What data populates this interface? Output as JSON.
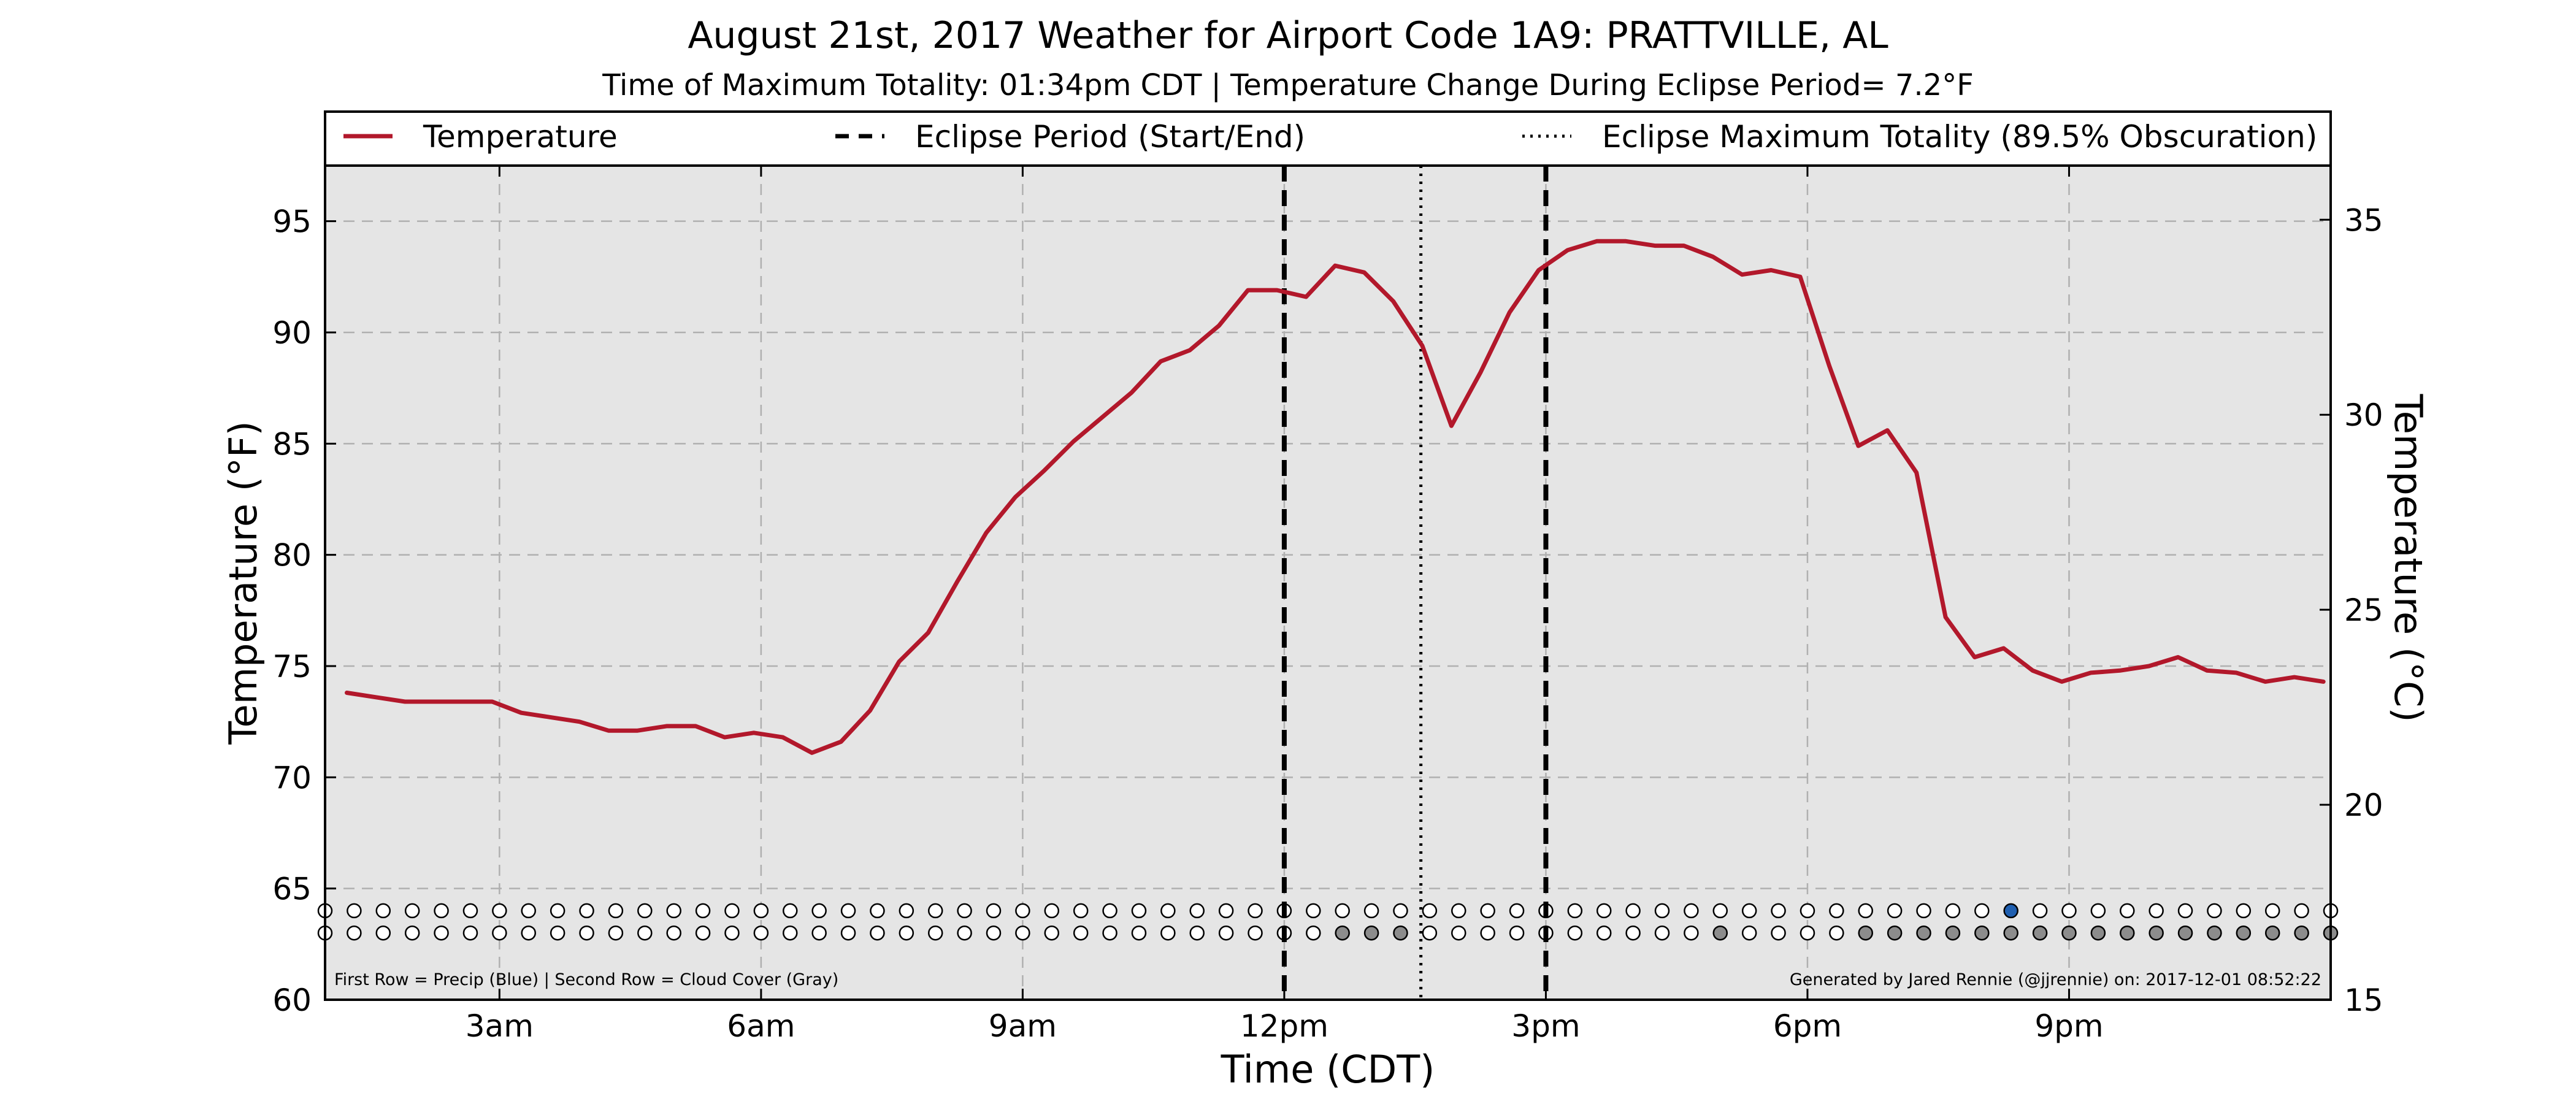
{
  "chart_data": {
    "type": "line",
    "title": "August 21st, 2017 Weather for Airport Code 1A9: PRATTVILLE, AL",
    "subtitle": "Time of Maximum Totality: 01:34pm CDT | Temperature Change During Eclipse Period= 7.2°F",
    "xlabel": "Time (CDT)",
    "ylabel": "Temperature (°F)",
    "ylabel_right": "Temperature (°C)",
    "xlim": [
      "01:00",
      "24:00"
    ],
    "ylim": [
      60,
      97.5
    ],
    "ylim_right_c": [
      15,
      36.3889
    ],
    "x_ticks": [
      {
        "time": "03:00",
        "label": "3am"
      },
      {
        "time": "06:00",
        "label": "6am"
      },
      {
        "time": "09:00",
        "label": "9am"
      },
      {
        "time": "12:00",
        "label": "12pm"
      },
      {
        "time": "15:00",
        "label": "3pm"
      },
      {
        "time": "18:00",
        "label": "6pm"
      },
      {
        "time": "21:00",
        "label": "9pm"
      }
    ],
    "y_ticks": [
      60,
      65,
      70,
      75,
      80,
      85,
      90,
      95
    ],
    "y_ticks_right": [
      15,
      20,
      25,
      30,
      35
    ],
    "grid": true,
    "legend_position": "top",
    "legend": [
      {
        "label": "Temperature",
        "style": "solid"
      },
      {
        "label": "Eclipse Period (Start/End)",
        "style": "dashed"
      },
      {
        "label": "Eclipse Maximum Totality (89.5% Obscuration)",
        "style": "dotted"
      }
    ],
    "eclipse_start": "12:00",
    "eclipse_end": "15:00",
    "eclipse_max": "13:34",
    "series": [
      {
        "name": "Temperature",
        "color": "#b2182b",
        "points": [
          [
            "01:15",
            73.8
          ],
          [
            "01:35",
            73.6
          ],
          [
            "01:55",
            73.4
          ],
          [
            "02:15",
            73.4
          ],
          [
            "02:35",
            73.4
          ],
          [
            "02:55",
            73.4
          ],
          [
            "03:15",
            72.9
          ],
          [
            "03:35",
            72.7
          ],
          [
            "03:55",
            72.5
          ],
          [
            "04:15",
            72.1
          ],
          [
            "04:35",
            72.1
          ],
          [
            "04:55",
            72.3
          ],
          [
            "05:15",
            72.3
          ],
          [
            "05:35",
            71.8
          ],
          [
            "05:55",
            72.0
          ],
          [
            "06:15",
            71.8
          ],
          [
            "06:35",
            71.1
          ],
          [
            "06:55",
            71.6
          ],
          [
            "07:15",
            73.0
          ],
          [
            "07:35",
            75.2
          ],
          [
            "07:55",
            76.5
          ],
          [
            "08:15",
            78.8
          ],
          [
            "08:35",
            81.0
          ],
          [
            "08:55",
            82.6
          ],
          [
            "09:15",
            83.8
          ],
          [
            "09:35",
            85.1
          ],
          [
            "09:55",
            86.2
          ],
          [
            "10:15",
            87.3
          ],
          [
            "10:35",
            88.7
          ],
          [
            "10:55",
            89.2
          ],
          [
            "11:15",
            90.3
          ],
          [
            "11:35",
            91.9
          ],
          [
            "11:55",
            91.9
          ],
          [
            "12:15",
            91.6
          ],
          [
            "12:35",
            93.0
          ],
          [
            "12:55",
            92.7
          ],
          [
            "13:15",
            91.4
          ],
          [
            "13:35",
            89.4
          ],
          [
            "13:55",
            85.8
          ],
          [
            "14:15",
            88.2
          ],
          [
            "14:35",
            90.9
          ],
          [
            "14:55",
            92.8
          ],
          [
            "15:15",
            93.7
          ],
          [
            "15:35",
            94.1
          ],
          [
            "15:55",
            94.1
          ],
          [
            "16:15",
            93.9
          ],
          [
            "16:35",
            93.9
          ],
          [
            "16:55",
            93.4
          ],
          [
            "17:15",
            92.6
          ],
          [
            "17:35",
            92.8
          ],
          [
            "17:55",
            92.5
          ],
          [
            "18:15",
            88.5
          ],
          [
            "18:35",
            84.9
          ],
          [
            "18:55",
            85.6
          ],
          [
            "19:15",
            83.7
          ],
          [
            "19:35",
            77.2
          ],
          [
            "19:55",
            75.4
          ],
          [
            "20:15",
            75.8
          ],
          [
            "20:35",
            74.8
          ],
          [
            "20:55",
            74.3
          ],
          [
            "21:15",
            74.7
          ],
          [
            "21:35",
            74.8
          ],
          [
            "21:55",
            75.0
          ],
          [
            "22:15",
            75.4
          ],
          [
            "22:35",
            74.8
          ],
          [
            "22:55",
            74.7
          ],
          [
            "23:15",
            74.3
          ],
          [
            "23:35",
            74.5
          ],
          [
            "23:55",
            74.3
          ]
        ]
      }
    ],
    "indicator_rows": {
      "precip_row_y": 64.0,
      "cloud_row_y": 63.0,
      "start_time": "01:00",
      "interval_min": 20,
      "count": 70,
      "precip_flag_indices": [
        58
      ],
      "cloud_flag_indices": [
        35,
        36,
        37,
        48,
        53,
        54,
        55,
        56,
        57,
        58,
        59,
        60,
        61,
        62,
        63,
        64,
        65,
        66,
        67,
        68,
        69
      ],
      "precip_color": "#1f5fb0",
      "cloud_color": "#8c8c8c"
    },
    "note_left": "First Row = Precip (Blue) | Second Row = Cloud Cover (Gray)",
    "note_right": "Generated by Jared Rennie (@jjrennie) on: 2017-12-01 08:52:22",
    "colors": {
      "temperature": "#b2182b",
      "plot_background": "#e5e5e5",
      "eclipse_lines": "#000000"
    }
  }
}
